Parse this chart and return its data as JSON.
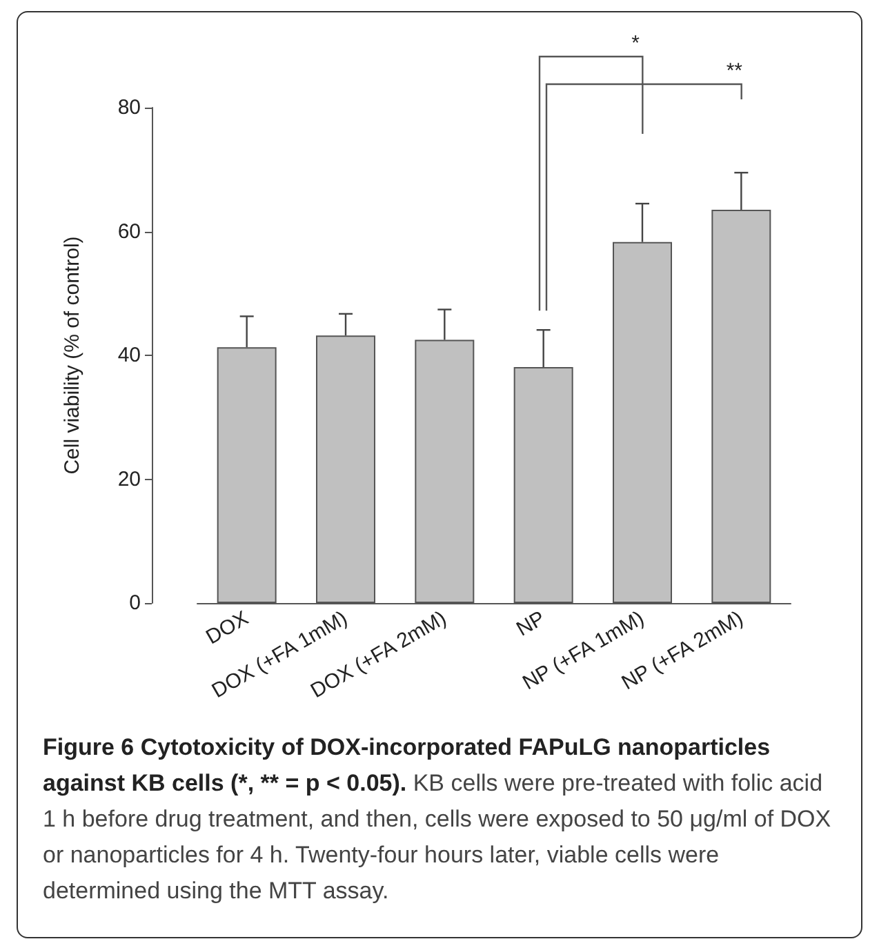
{
  "chart_data": {
    "type": "bar",
    "title": "Figure 6 Cytotoxicity of DOX-incorporated FAPuLG nanoparticles against KB cells (*, ** = p < 0.05).",
    "ylabel": "Cell viability (% of control)",
    "categories": [
      "DOX",
      "DOX (+FA 1mM)",
      "DOX (+FA 2mM)",
      "NP",
      "NP (+FA 1mM)",
      "NP (+FA 2mM)"
    ],
    "values": [
      41.3,
      43.2,
      42.5,
      38.1,
      58.3,
      63.5
    ],
    "errors": [
      [
        41.3,
        46.3
      ],
      [
        43.2,
        46.7
      ],
      [
        42.5,
        47.4
      ],
      [
        38.1,
        44.1
      ],
      [
        58.3,
        64.5
      ],
      [
        63.5,
        69.5
      ]
    ],
    "color": "#c0c0c0",
    "ylim": [
      0,
      80
    ],
    "yticks": [
      0,
      20,
      40,
      60,
      80
    ],
    "grid": false,
    "annotations": [
      "*",
      "**",
      "KB cells were pre-treated with folic acid 1 h before drug treatment, and then, cells were exposed to 50 μg/ml of DOX or nanoparticles for 4 h. Twenty-four hours later, viable cells were determined using the MTT assay."
    ]
  }
}
